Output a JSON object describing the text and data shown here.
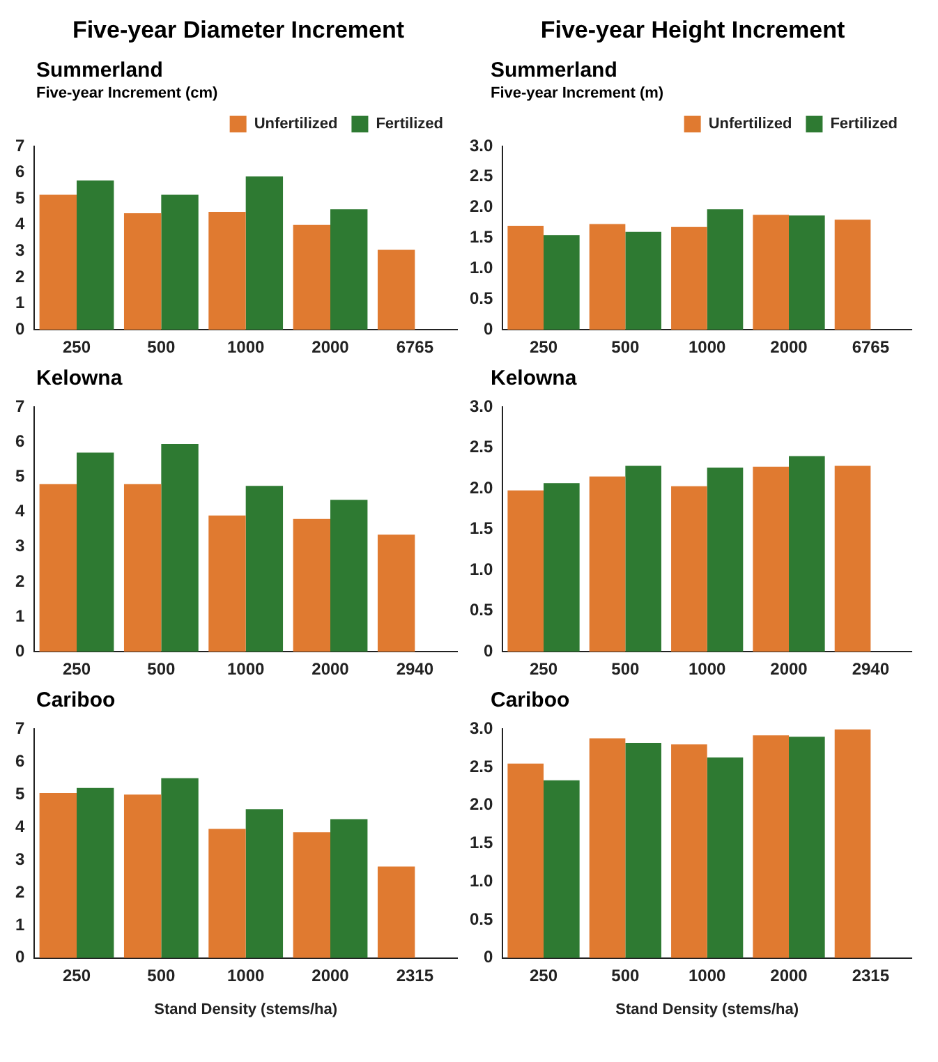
{
  "chart_data": [
    {
      "type": "bar",
      "title": "Five-year Diameter Increment",
      "subtitle": "Summerland",
      "ylabel": "Five-year Increment (cm)",
      "categories": [
        "250",
        "500",
        "1000",
        "2000",
        "6765"
      ],
      "legend": "top right",
      "ylim": [
        0,
        7
      ],
      "yticks": [
        0,
        1,
        2,
        3,
        4,
        5,
        6,
        7
      ],
      "series": [
        {
          "name": "Unfertilized",
          "color": "#e07a30",
          "values": [
            5.15,
            4.45,
            4.5,
            4.0,
            3.05
          ]
        },
        {
          "name": "Fertilized",
          "color": "#2e7a32",
          "values": [
            5.7,
            5.15,
            5.85,
            4.6,
            null
          ]
        }
      ]
    },
    {
      "type": "bar",
      "title": "Five-year Height Increment",
      "subtitle": "Summerland",
      "ylabel": "Five-year Increment (m)",
      "categories": [
        "250",
        "500",
        "1000",
        "2000",
        "6765"
      ],
      "legend": "top right",
      "ylim": [
        0,
        3
      ],
      "yticks": [
        0,
        0.5,
        {
          "value": 1,
          "label": "1.0"
        },
        1.5,
        {
          "value": 2,
          "label": "2.0"
        },
        2.5,
        {
          "value": 3,
          "label": "3.0"
        }
      ],
      "series": [
        {
          "name": "Unfertilized",
          "color": "#e07a30",
          "values": [
            1.7,
            1.73,
            1.68,
            1.88,
            1.8
          ]
        },
        {
          "name": "Fertilized",
          "color": "#2e7a32",
          "values": [
            1.55,
            1.6,
            1.97,
            1.87,
            null
          ]
        }
      ]
    },
    {
      "type": "bar",
      "subtitle": "Kelowna",
      "categories": [
        "250",
        "500",
        "1000",
        "2000",
        "2940"
      ],
      "ylim": [
        0,
        7
      ],
      "yticks": [
        0,
        1,
        2,
        3,
        4,
        5,
        6,
        7
      ],
      "series": [
        {
          "color": "#e07a30",
          "values": [
            4.8,
            4.8,
            3.9,
            3.8,
            3.35
          ]
        },
        {
          "color": "#2e7a32",
          "values": [
            5.7,
            5.95,
            4.75,
            4.35,
            null
          ]
        }
      ]
    },
    {
      "type": "bar",
      "subtitle": "Kelowna",
      "categories": [
        "250",
        "500",
        "1000",
        "2000",
        "2940"
      ],
      "ylim": [
        0,
        3
      ],
      "yticks": [
        0,
        0.5,
        {
          "value": 1,
          "label": "1.0"
        },
        1.5,
        {
          "value": 2,
          "label": "2.0"
        },
        2.5,
        {
          "value": 3,
          "label": "3.0"
        }
      ],
      "series": [
        {
          "color": "#e07a30",
          "values": [
            1.98,
            2.15,
            2.03,
            2.27,
            2.28
          ]
        },
        {
          "color": "#2e7a32",
          "values": [
            2.07,
            2.28,
            2.26,
            2.4,
            null
          ]
        }
      ]
    },
    {
      "type": "bar",
      "subtitle": "Cariboo",
      "xlabel": "Stand Density (stems/ha)",
      "categories": [
        "250",
        "500",
        "1000",
        "2000",
        "2315"
      ],
      "ylim": [
        0,
        7
      ],
      "yticks": [
        0,
        1,
        2,
        3,
        4,
        5,
        6,
        7
      ],
      "series": [
        {
          "color": "#e07a30",
          "values": [
            5.05,
            5.0,
            3.95,
            3.85,
            2.8
          ]
        },
        {
          "color": "#2e7a32",
          "values": [
            5.2,
            5.5,
            4.55,
            4.25,
            null
          ]
        }
      ]
    },
    {
      "type": "bar",
      "subtitle": "Cariboo",
      "xlabel": "Stand Density (stems/ha)",
      "categories": [
        "250",
        "500",
        "1000",
        "2000",
        "2315"
      ],
      "ylim": [
        0,
        3
      ],
      "yticks": [
        0,
        0.5,
        {
          "value": 1,
          "label": "1.0"
        },
        1.5,
        {
          "value": 2,
          "label": "2.0"
        },
        2.5,
        {
          "value": 3,
          "label": "3.0"
        }
      ],
      "series": [
        {
          "color": "#e07a30",
          "values": [
            2.55,
            2.88,
            2.8,
            2.92,
            3.0
          ]
        },
        {
          "color": "#2e7a32",
          "values": [
            2.33,
            2.82,
            2.63,
            2.9,
            null
          ]
        }
      ]
    }
  ]
}
